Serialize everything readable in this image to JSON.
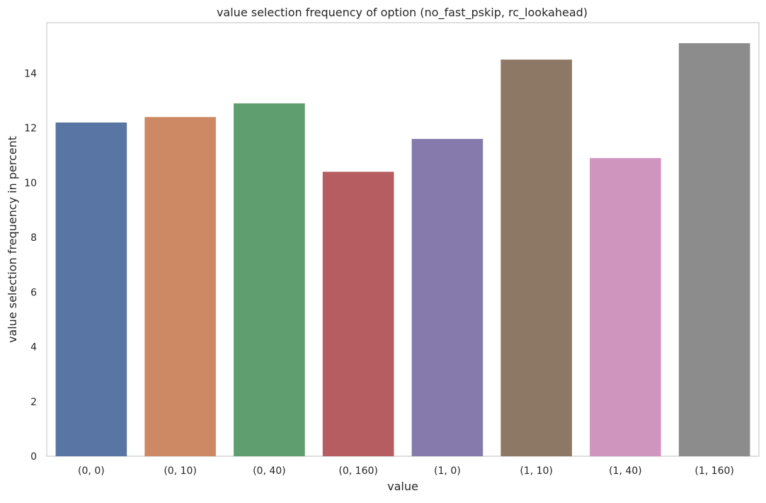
{
  "chart_data": {
    "type": "bar",
    "title": "value selection frequency of option (no_fast_pskip, rc_lookahead)",
    "xlabel": "value",
    "ylabel": "value selection frequency in percent",
    "categories": [
      "(0, 0)",
      "(0, 10)",
      "(0, 40)",
      "(0, 160)",
      "(1, 0)",
      "(1, 10)",
      "(1, 40)",
      "(1, 160)"
    ],
    "values": [
      12.2,
      12.4,
      12.9,
      10.4,
      11.6,
      14.5,
      10.9,
      15.1
    ],
    "colors": [
      "#5975a4",
      "#cc8963",
      "#5f9e6e",
      "#b55d60",
      "#857aab",
      "#8d7866",
      "#d095bf",
      "#8c8c8c"
    ],
    "ylim": [
      0,
      15.85
    ],
    "yticks": [
      0,
      2,
      4,
      6,
      8,
      10,
      12,
      14
    ],
    "grid": false,
    "legend": "none"
  }
}
